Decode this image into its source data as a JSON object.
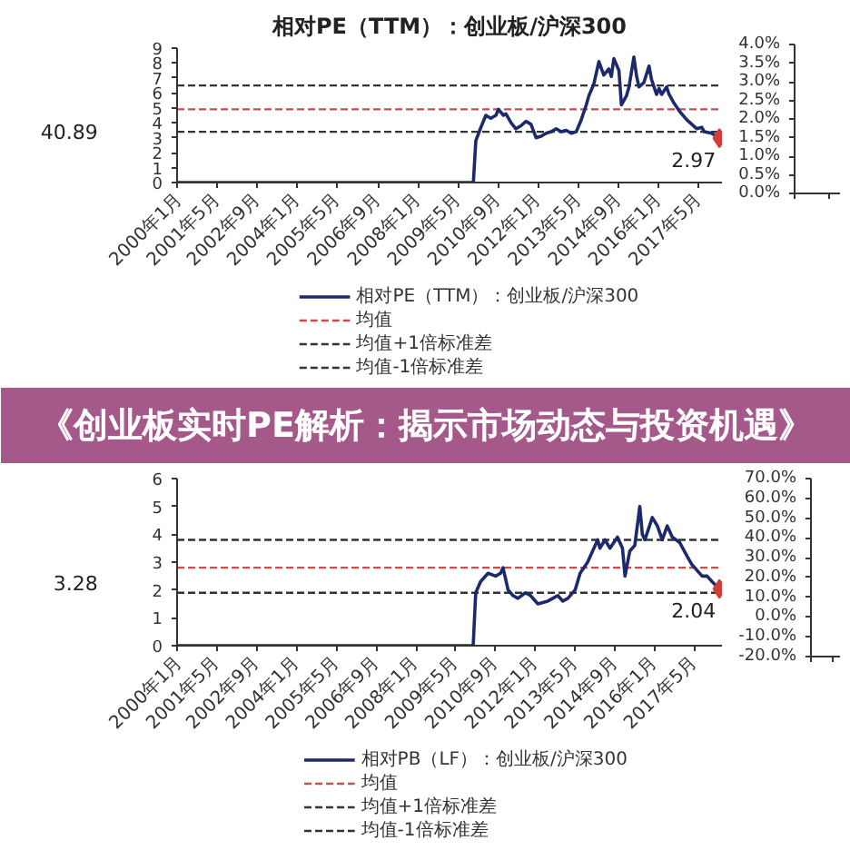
{
  "chart_data": [
    {
      "type": "other",
      "annotations": [
        "40.89"
      ]
    },
    {
      "type": "line",
      "title": "相对PE（TTM）：创业板/沪深300",
      "x": [
        "2000-01",
        "2009-11",
        "2009-12",
        "2010-02",
        "2010-04",
        "2010-06",
        "2010-08",
        "2010-09",
        "2010-11",
        "2010-12",
        "2011-02",
        "2011-04",
        "2011-06",
        "2011-08",
        "2011-10",
        "2011-12",
        "2012-02",
        "2012-04",
        "2012-06",
        "2012-08",
        "2012-10",
        "2012-12",
        "2013-02",
        "2013-04",
        "2013-06",
        "2013-08",
        "2013-09",
        "2013-11",
        "2014-01",
        "2014-03",
        "2014-05",
        "2014-06",
        "2014-07",
        "2014-09",
        "2014-10",
        "2014-12",
        "2015-01",
        "2015-03",
        "2015-04",
        "2015-05",
        "2015-07",
        "2015-09",
        "2015-10",
        "2015-12",
        "2016-01",
        "2016-02",
        "2016-04",
        "2016-05",
        "2016-07",
        "2016-09",
        "2016-12",
        "2017-02",
        "2017-04",
        "2017-06",
        "2017-07",
        "2017-10",
        "2018-01"
      ],
      "series": [
        {
          "name": "相对PE（TTM）：创业板/沪深300",
          "color": "#1c2a6b",
          "values": [
            0,
            0,
            2.8,
            3.7,
            4.5,
            4.3,
            4.5,
            4.9,
            4.5,
            4.6,
            4.0,
            3.6,
            3.8,
            4.1,
            3.9,
            3.0,
            3.1,
            3.3,
            3.4,
            3.6,
            3.4,
            3.5,
            3.3,
            3.4,
            4.2,
            5.2,
            5.8,
            6.6,
            8.1,
            7.2,
            7.6,
            7.1,
            8.3,
            7.5,
            5.2,
            5.8,
            6.4,
            8.4,
            7.2,
            6.4,
            6.7,
            7.8,
            6.9,
            5.9,
            6.3,
            5.9,
            6.4,
            5.9,
            5.3,
            4.8,
            4.2,
            3.9,
            3.6,
            3.7,
            3.4,
            3.3,
            2.97
          ]
        },
        {
          "type": "scatter",
          "marker": "diamond",
          "color": "#d23c3c",
          "x": [
            "2018-01"
          ],
          "values": [
            2.97
          ],
          "value_labels": [
            "2.97"
          ]
        }
      ],
      "xlim": [
        "2000-01",
        "2018-02"
      ],
      "xticks": [
        {
          "value": "2000-01",
          "label": "2000年1月"
        },
        {
          "value": "2001-05",
          "label": "2001年5月"
        },
        {
          "value": "2002-09",
          "label": "2002年9月"
        },
        {
          "value": "2004-01",
          "label": "2004年1月"
        },
        {
          "value": "2005-05",
          "label": "2005年5月"
        },
        {
          "value": "2006-09",
          "label": "2006年9月"
        },
        {
          "value": "2008-01",
          "label": "2008年1月"
        },
        {
          "value": "2009-05",
          "label": "2009年5月"
        },
        {
          "value": "2010-09",
          "label": "2010年9月"
        },
        {
          "value": "2012-01",
          "label": "2012年1月"
        },
        {
          "value": "2013-05",
          "label": "2013年5月"
        },
        {
          "value": "2014-09",
          "label": "2014年9月"
        },
        {
          "value": "2016-01",
          "label": "2016年1月"
        },
        {
          "value": "2017-05",
          "label": "2017年5月"
        }
      ],
      "ylim": [
        0,
        9
      ],
      "yticks": [
        0,
        1,
        2,
        3,
        4,
        5,
        6,
        7,
        8,
        9
      ],
      "ref_lines": [
        {
          "axis": "y",
          "value": 4.9,
          "label": "均值",
          "color": "#c0504d",
          "line_style": "dashed"
        },
        {
          "axis": "y",
          "value": 6.5,
          "label": "均值+1倍标准差",
          "color": "#333333",
          "line_style": "dashed"
        },
        {
          "axis": "y",
          "value": 3.4,
          "label": "均值-1倍标准差",
          "color": "#333333",
          "line_style": "dashed"
        }
      ],
      "legend": "bottom"
    },
    {
      "type": "line",
      "categories": [
        null,
        null
      ],
      "values": [
        null,
        null
      ],
      "ylim": [
        0,
        4
      ],
      "yticks": [
        {
          "value": 0,
          "label": "0.0%"
        },
        {
          "value": 0.5,
          "label": "0.5%"
        },
        {
          "value": 1,
          "label": "1.0%"
        },
        {
          "value": 1.5,
          "label": "1.5%"
        },
        {
          "value": 2,
          "label": "2.0%"
        },
        {
          "value": 2.5,
          "label": "2.5%"
        },
        {
          "value": 3,
          "label": "3.0%"
        },
        {
          "value": 3.5,
          "label": "3.5%"
        },
        {
          "value": 4,
          "label": "4.0%"
        }
      ],
      "tick_labels": "y"
    },
    {
      "type": "other",
      "title": "《创业板实时PE解析：揭示市场动态与投资机遇》",
      "color": "#a5598b"
    },
    {
      "type": "other",
      "annotations": [
        "3.28"
      ]
    },
    {
      "type": "line",
      "x": [
        "2000-01",
        "2009-12",
        "2010-01",
        "2010-03",
        "2010-06",
        "2010-09",
        "2010-11",
        "2010-12",
        "2011-02",
        "2011-04",
        "2011-06",
        "2011-09",
        "2011-11",
        "2012-02",
        "2012-06",
        "2012-08",
        "2012-10",
        "2012-12",
        "2013-02",
        "2013-05",
        "2013-07",
        "2013-10",
        "2013-11",
        "2014-02",
        "2014-03",
        "2014-05",
        "2014-07",
        "2014-10",
        "2014-12",
        "2015-01",
        "2015-03",
        "2015-05",
        "2015-07",
        "2015-08",
        "2015-09",
        "2015-12",
        "2016-02",
        "2016-04",
        "2016-06",
        "2016-08",
        "2016-11",
        "2017-02",
        "2017-04",
        "2017-08",
        "2017-10",
        "2017-12",
        "2018-03"
      ],
      "series": [
        {
          "name": "相对PB（LF）：创业板/沪深300",
          "color": "#1c2a6b",
          "values": [
            0,
            0,
            1.9,
            2.3,
            2.6,
            2.5,
            2.6,
            2.8,
            2.0,
            1.8,
            1.7,
            1.9,
            1.8,
            1.5,
            1.6,
            1.7,
            1.8,
            1.6,
            1.7,
            2.0,
            2.6,
            3.0,
            3.2,
            3.8,
            3.5,
            3.8,
            3.5,
            3.9,
            3.5,
            2.5,
            3.4,
            3.6,
            5.0,
            4.0,
            3.8,
            4.6,
            4.3,
            3.8,
            4.3,
            3.9,
            3.7,
            3.2,
            2.9,
            2.5,
            2.5,
            2.3,
            2.04
          ]
        },
        {
          "type": "scatter",
          "marker": "diamond",
          "color": "#d23c3c",
          "x": [
            "2018-03"
          ],
          "values": [
            2.04
          ],
          "value_labels": [
            "2.04"
          ]
        }
      ],
      "xlim": [
        "2000-01",
        "2018-04"
      ],
      "xticks": [
        {
          "value": "2000-01",
          "label": "2000年1月"
        },
        {
          "value": "2001-05",
          "label": "2001年5月"
        },
        {
          "value": "2002-09",
          "label": "2002年9月"
        },
        {
          "value": "2004-01",
          "label": "2004年1月"
        },
        {
          "value": "2005-05",
          "label": "2005年5月"
        },
        {
          "value": "2006-09",
          "label": "2006年9月"
        },
        {
          "value": "2008-01",
          "label": "2008年1月"
        },
        {
          "value": "2009-05",
          "label": "2009年5月"
        },
        {
          "value": "2010-09",
          "label": "2010年9月"
        },
        {
          "value": "2012-01",
          "label": "2012年1月"
        },
        {
          "value": "2013-05",
          "label": "2013年5月"
        },
        {
          "value": "2014-09",
          "label": "2014年9月"
        },
        {
          "value": "2016-01",
          "label": "2016年1月"
        },
        {
          "value": "2017-05",
          "label": "2017年5月"
        }
      ],
      "ylim": [
        0,
        6
      ],
      "yticks": [
        0,
        1,
        2,
        3,
        4,
        5,
        6
      ],
      "ref_lines": [
        {
          "axis": "y",
          "value": 2.8,
          "label": "均值",
          "color": "#c0504d",
          "line_style": "dashed"
        },
        {
          "axis": "y",
          "value": 3.8,
          "label": "均值+1倍标准差",
          "color": "#333333",
          "line_style": "dashed"
        },
        {
          "axis": "y",
          "value": 1.9,
          "label": "均值-1倍标准差",
          "color": "#333333",
          "line_style": "dashed"
        }
      ],
      "legend": "bottom"
    },
    {
      "type": "line",
      "categories": [
        null,
        null
      ],
      "values": [
        null,
        null
      ],
      "ylim": [
        -20,
        70
      ],
      "yticks": [
        {
          "value": -20,
          "label": "-20.0%"
        },
        {
          "value": -10,
          "label": "-10.0%"
        },
        {
          "value": 0,
          "label": "0.0%"
        },
        {
          "value": 10,
          "label": "10.0%"
        },
        {
          "value": 20,
          "label": "20.0%"
        },
        {
          "value": 30,
          "label": "30.0%"
        },
        {
          "value": 40,
          "label": "40.0%"
        },
        {
          "value": 50,
          "label": "50.0%"
        },
        {
          "value": 60,
          "label": "60.0%"
        },
        {
          "value": 70,
          "label": "70.0%"
        }
      ],
      "tick_labels": "y"
    }
  ]
}
